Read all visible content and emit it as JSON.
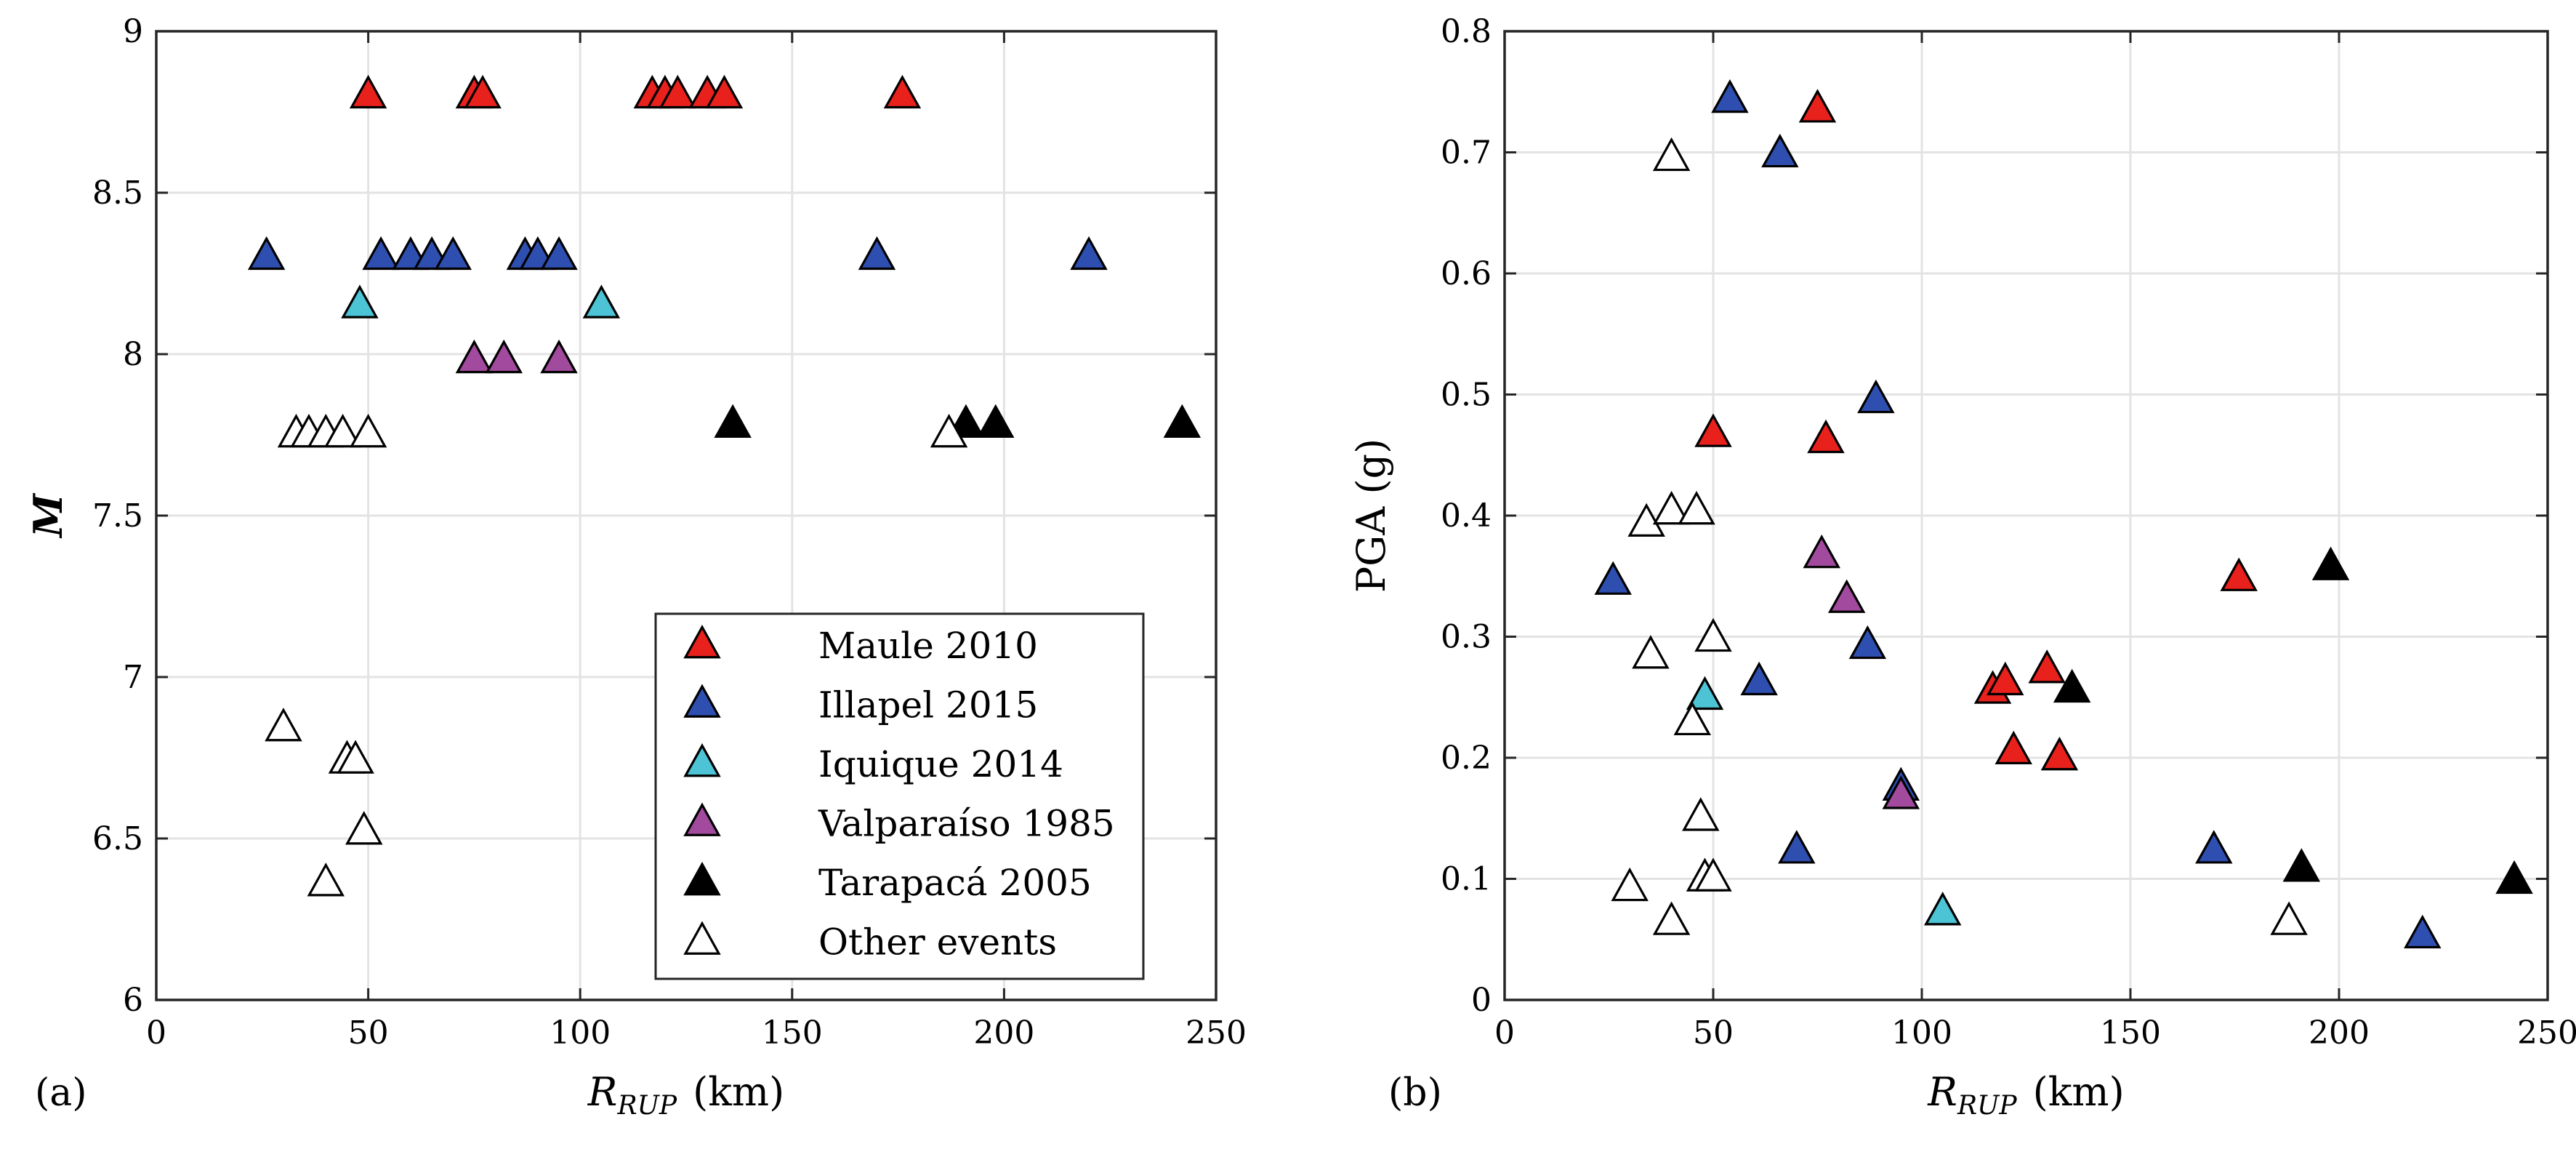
{
  "chart_data": [
    {
      "type": "scatter",
      "panel_label": "(a)",
      "xlabel": {
        "main": "R",
        "sub": "RUP",
        "unit": "(km)"
      },
      "ylabel": "M",
      "xlim": [
        0,
        250
      ],
      "ylim": [
        6,
        9
      ],
      "xticks": [
        0,
        50,
        100,
        150,
        200,
        250
      ],
      "yticks": [
        6,
        6.5,
        7,
        7.5,
        8,
        8.5,
        9
      ],
      "ytick_labels": [
        "6",
        "6.5",
        "7",
        "7.5",
        "8",
        "8.5",
        "9"
      ],
      "grid": true,
      "legend_position": "bottom-right",
      "series": [
        {
          "name": "Maule 2010",
          "color": "#e8211d",
          "filled": true,
          "points": [
            [
              50,
              8.8
            ],
            [
              75,
              8.8
            ],
            [
              77,
              8.8
            ],
            [
              117,
              8.8
            ],
            [
              120,
              8.8
            ],
            [
              123,
              8.8
            ],
            [
              130,
              8.8
            ],
            [
              134,
              8.8
            ],
            [
              176,
              8.8
            ]
          ]
        },
        {
          "name": "Illapel 2015",
          "color": "#2e4fb0",
          "filled": true,
          "points": [
            [
              26,
              8.3
            ],
            [
              53,
              8.3
            ],
            [
              60,
              8.3
            ],
            [
              65,
              8.3
            ],
            [
              70,
              8.3
            ],
            [
              87,
              8.3
            ],
            [
              90,
              8.3
            ],
            [
              95,
              8.3
            ],
            [
              170,
              8.3
            ],
            [
              220,
              8.3
            ]
          ]
        },
        {
          "name": "Iquique 2014",
          "color": "#4cc4d6",
          "filled": true,
          "points": [
            [
              48,
              8.15
            ],
            [
              105,
              8.15
            ]
          ]
        },
        {
          "name": "Valparaíso 1985",
          "color": "#a24a9e",
          "filled": true,
          "points": [
            [
              75,
              7.98
            ],
            [
              82,
              7.98
            ],
            [
              95,
              7.98
            ]
          ]
        },
        {
          "name": "Tarapacá 2005",
          "color": "#000000",
          "filled": true,
          "points": [
            [
              136,
              7.78
            ],
            [
              191,
              7.78
            ],
            [
              198,
              7.78
            ],
            [
              242,
              7.78
            ]
          ]
        },
        {
          "name": "Other events",
          "color": "#ffffff",
          "filled": false,
          "points": [
            [
              33,
              7.75
            ],
            [
              36,
              7.75
            ],
            [
              40,
              7.75
            ],
            [
              44,
              7.75
            ],
            [
              50,
              7.75
            ],
            [
              187,
              7.75
            ],
            [
              30,
              6.84
            ],
            [
              45,
              6.74
            ],
            [
              47,
              6.74
            ],
            [
              49,
              6.52
            ],
            [
              40,
              6.36
            ]
          ]
        }
      ]
    },
    {
      "type": "scatter",
      "panel_label": "(b)",
      "xlabel": {
        "main": "R",
        "sub": "RUP",
        "unit": "(km)"
      },
      "ylabel": "PGA (g)",
      "xlim": [
        0,
        250
      ],
      "ylim": [
        0,
        0.8
      ],
      "xticks": [
        0,
        50,
        100,
        150,
        200,
        250
      ],
      "yticks": [
        0,
        0.1,
        0.2,
        0.3,
        0.4,
        0.5,
        0.6,
        0.7,
        0.8
      ],
      "ytick_labels": [
        "0",
        "0.1",
        "0.2",
        "0.3",
        "0.4",
        "0.5",
        "0.6",
        "0.7",
        "0.8"
      ],
      "grid": true,
      "series": [
        {
          "name": "Maule 2010",
          "color": "#e8211d",
          "filled": true,
          "points": [
            [
              75,
              0.735
            ],
            [
              50,
              0.467
            ],
            [
              77,
              0.462
            ],
            [
              176,
              0.348
            ],
            [
              117,
              0.255
            ],
            [
              120,
              0.262
            ],
            [
              130,
              0.272
            ],
            [
              122,
              0.205
            ],
            [
              133,
              0.2
            ]
          ]
        },
        {
          "name": "Illapel 2015",
          "color": "#2e4fb0",
          "filled": true,
          "points": [
            [
              54,
              0.743
            ],
            [
              66,
              0.698
            ],
            [
              89,
              0.495
            ],
            [
              26,
              0.345
            ],
            [
              87,
              0.292
            ],
            [
              61,
              0.262
            ],
            [
              95,
              0.175
            ],
            [
              70,
              0.123
            ],
            [
              170,
              0.123
            ],
            [
              220,
              0.053
            ]
          ]
        },
        {
          "name": "Iquique 2014",
          "color": "#4cc4d6",
          "filled": true,
          "points": [
            [
              48,
              0.25
            ],
            [
              105,
              0.072
            ]
          ]
        },
        {
          "name": "Valparaíso 1985",
          "color": "#a24a9e",
          "filled": true,
          "points": [
            [
              76,
              0.367
            ],
            [
              82,
              0.33
            ],
            [
              95,
              0.168
            ]
          ]
        },
        {
          "name": "Tarapacá 2005",
          "color": "#000000",
          "filled": true,
          "points": [
            [
              198,
              0.357
            ],
            [
              136,
              0.256
            ],
            [
              191,
              0.108
            ],
            [
              242,
              0.098
            ]
          ]
        },
        {
          "name": "Other events",
          "color": "#ffffff",
          "filled": false,
          "points": [
            [
              40,
              0.695
            ],
            [
              34,
              0.393
            ],
            [
              40,
              0.403
            ],
            [
              46,
              0.403
            ],
            [
              50,
              0.298
            ],
            [
              35,
              0.284
            ],
            [
              45,
              0.229
            ],
            [
              47,
              0.15
            ],
            [
              48,
              0.1
            ],
            [
              50,
              0.1
            ],
            [
              30,
              0.092
            ],
            [
              40,
              0.064
            ],
            [
              188,
              0.064
            ]
          ]
        }
      ]
    }
  ]
}
